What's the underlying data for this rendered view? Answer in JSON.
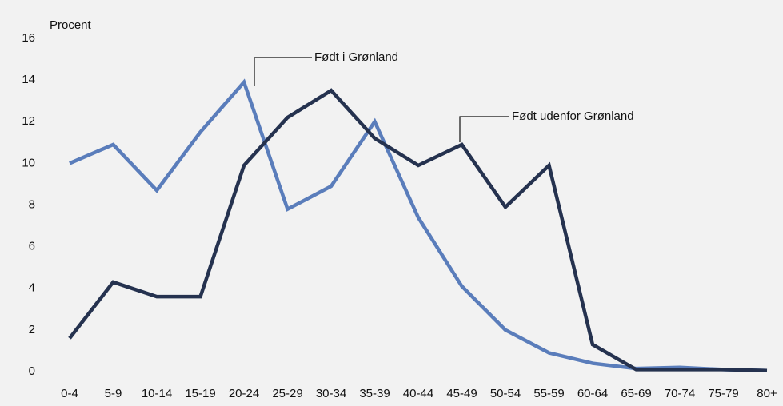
{
  "chart_data": {
    "type": "line",
    "y_label": "Procent",
    "categories": [
      "0-4",
      "5-9",
      "10-14",
      "15-19",
      "20-24",
      "25-29",
      "30-34",
      "35-39",
      "40-44",
      "45-49",
      "50-54",
      "55-59",
      "60-64",
      "65-69",
      "70-74",
      "75-79",
      "80+"
    ],
    "series": [
      {
        "name": "Født i Grønland",
        "color": "#5a7dbb",
        "values": [
          10.0,
          10.9,
          8.7,
          11.5,
          13.9,
          7.8,
          8.9,
          12.0,
          7.4,
          4.1,
          2.0,
          0.9,
          0.4,
          0.15,
          0.2,
          0.1,
          0.05
        ]
      },
      {
        "name": "Født udenfor Grønland",
        "color": "#25324f",
        "values": [
          1.6,
          4.3,
          3.6,
          3.6,
          9.9,
          12.2,
          13.5,
          11.2,
          9.9,
          10.9,
          7.9,
          9.9,
          1.3,
          0.1,
          0.1,
          0.1,
          0.05
        ]
      }
    ],
    "ylim": [
      0,
      16
    ],
    "yticks": [
      0,
      2,
      4,
      6,
      8,
      10,
      12,
      14,
      16
    ],
    "grid": false
  }
}
